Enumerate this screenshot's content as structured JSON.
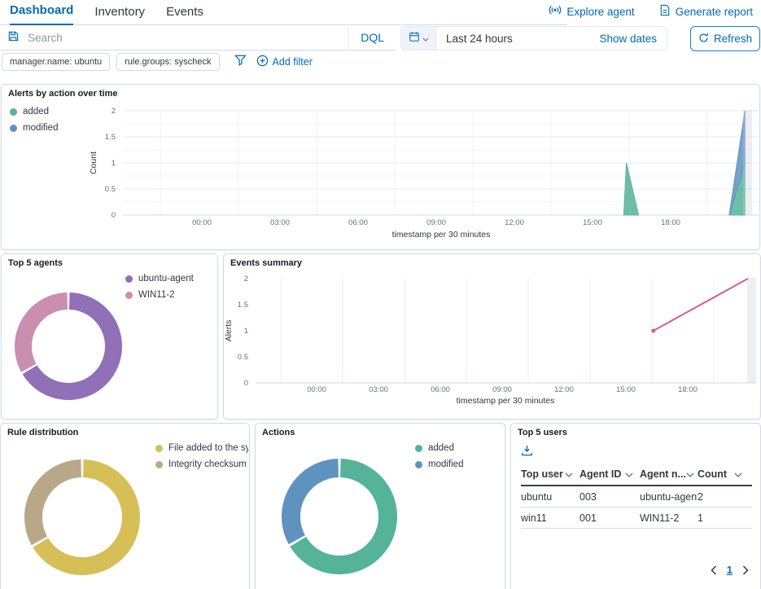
{
  "header": {
    "tabs": [
      {
        "label": "Dashboard",
        "active": true
      },
      {
        "label": "Inventory",
        "active": false
      },
      {
        "label": "Events",
        "active": false
      }
    ],
    "actions": [
      {
        "label": "Explore agent",
        "icon": "broadcast-icon"
      },
      {
        "label": "Generate report",
        "icon": "report-icon"
      }
    ]
  },
  "toolbar": {
    "search_placeholder": "Search",
    "language": "DQL",
    "time_range": "Last 24 hours",
    "show_dates_label": "Show dates",
    "refresh_label": "Refresh"
  },
  "filter_bar": {
    "pills": [
      "manager.name: ubuntu",
      "rule.groups: syscheck"
    ],
    "add_filter_label": "Add filter"
  },
  "colors": {
    "primary": "#006BB4",
    "text": "#343741",
    "subdued": "#69707D",
    "border": "#D3DAE6",
    "green": "#54B399",
    "blue": "#6092C0",
    "purple": "#9170B8",
    "pink": "#CA8EAE",
    "yellow": "#D6BF57",
    "tan": "#B9A888",
    "rose": "#D36086"
  },
  "chart_data": [
    {
      "id": "alerts_by_action_over_time",
      "type": "area",
      "title": "Alerts by action over time",
      "xlabel": "timestamp per 30 minutes",
      "ylabel": "Count",
      "ylim": [
        0,
        2
      ],
      "yticks": [
        0,
        0.5,
        1,
        1.5,
        2
      ],
      "xticks": [
        "00:00",
        "03:00",
        "06:00",
        "09:00",
        "12:00",
        "15:00",
        "18:00"
      ],
      "xtick_hours": [
        0,
        3,
        6,
        9,
        12,
        15,
        18
      ],
      "stacked": true,
      "series": [
        {
          "name": "added",
          "color": "#54B399",
          "segments": [
            [
              [
                "16:12",
                0
              ],
              [
                "16:18",
                1
              ],
              [
                "16:46",
                0
              ]
            ],
            [
              [
                "20:15",
                0
              ],
              [
                "20:51",
                1
              ]
            ]
          ]
        },
        {
          "name": "modified",
          "color": "#6092C0",
          "segments": [
            [
              [
                "20:15",
                0
              ],
              [
                "20:51",
                1
              ]
            ]
          ]
        }
      ],
      "partial_bucket_band": true
    },
    {
      "id": "top_5_agents",
      "type": "donut",
      "title": "Top 5 agents",
      "labels": [
        "ubuntu-agent",
        "WIN11-2"
      ],
      "values": [
        2,
        1
      ],
      "colors": [
        "#9170B8",
        "#CA8EAE"
      ]
    },
    {
      "id": "events_summary",
      "type": "line",
      "title": "Events summary",
      "xlabel": "timestamp per 30 minutes",
      "ylabel": "Alerts",
      "ylim": [
        0,
        2
      ],
      "yticks": [
        0,
        0.5,
        1,
        1.5,
        2
      ],
      "xticks": [
        "00:00",
        "03:00",
        "06:00",
        "09:00",
        "12:00",
        "15:00",
        "18:00"
      ],
      "xtick_hours": [
        0,
        3,
        6,
        9,
        12,
        15,
        18
      ],
      "series": [
        {
          "name": "Alerts",
          "color": "#D36086",
          "points": [
            [
              "16:20",
              1
            ],
            [
              "20:55",
              2
            ]
          ]
        }
      ],
      "partial_bucket_band": true
    },
    {
      "id": "rule_distribution",
      "type": "donut",
      "title": "Rule distribution",
      "labels": [
        "File added to the syste",
        "Integrity checksum ch"
      ],
      "values": [
        2,
        1
      ],
      "colors": [
        "#D6BF57",
        "#B9A888"
      ]
    },
    {
      "id": "actions",
      "type": "donut",
      "title": "Actions",
      "labels": [
        "added",
        "modified"
      ],
      "values": [
        2,
        1
      ],
      "colors": [
        "#54B399",
        "#6092C0"
      ]
    },
    {
      "id": "top_5_users",
      "type": "table",
      "title": "Top 5 users",
      "columns": [
        "Top user",
        "Agent ID",
        "Agent n...",
        "Count"
      ],
      "rows": [
        [
          "ubuntu",
          "003",
          "ubuntu-agent",
          "2"
        ],
        [
          "win11",
          "001",
          "WIN11-2",
          "1"
        ]
      ],
      "pagination": {
        "page": "1"
      }
    }
  ]
}
